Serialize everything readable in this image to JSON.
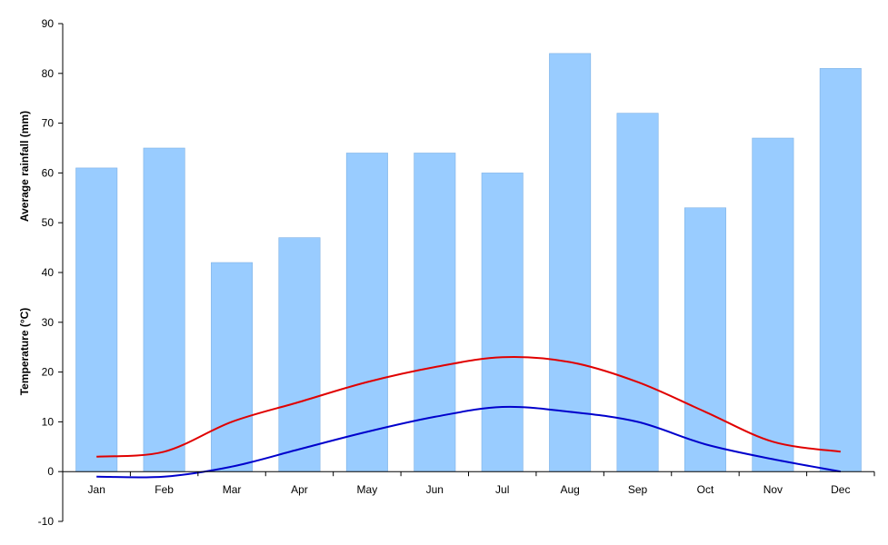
{
  "chart_data": {
    "type": "bar",
    "title": "",
    "categories": [
      "Jan",
      "Feb",
      "Mar",
      "Apr",
      "May",
      "Jun",
      "Jul",
      "Aug",
      "Sep",
      "Oct",
      "Nov",
      "Dec"
    ],
    "ylabel_rainfall": "Average  rainfall (mm)",
    "ylabel_temperature": "Temperature (°C)",
    "ylim": [
      -10,
      90
    ],
    "yticks": [
      -10,
      0,
      10,
      20,
      30,
      40,
      50,
      60,
      70,
      80,
      90
    ],
    "grid": false,
    "legend": "none",
    "series": [
      {
        "kind": "bar",
        "color": "#99ccff",
        "values": [
          61,
          65,
          42,
          47,
          64,
          64,
          60,
          84,
          72,
          53,
          67,
          81
        ]
      },
      {
        "kind": "line",
        "color": "#e00000",
        "values": [
          3,
          4,
          10,
          14,
          18,
          21,
          23,
          22,
          18,
          12,
          6,
          4
        ]
      },
      {
        "kind": "line",
        "color": "#0000cc",
        "values": [
          -1,
          -1,
          1,
          4.5,
          8,
          11,
          13,
          12,
          10,
          5.5,
          2.5,
          0
        ]
      }
    ]
  }
}
